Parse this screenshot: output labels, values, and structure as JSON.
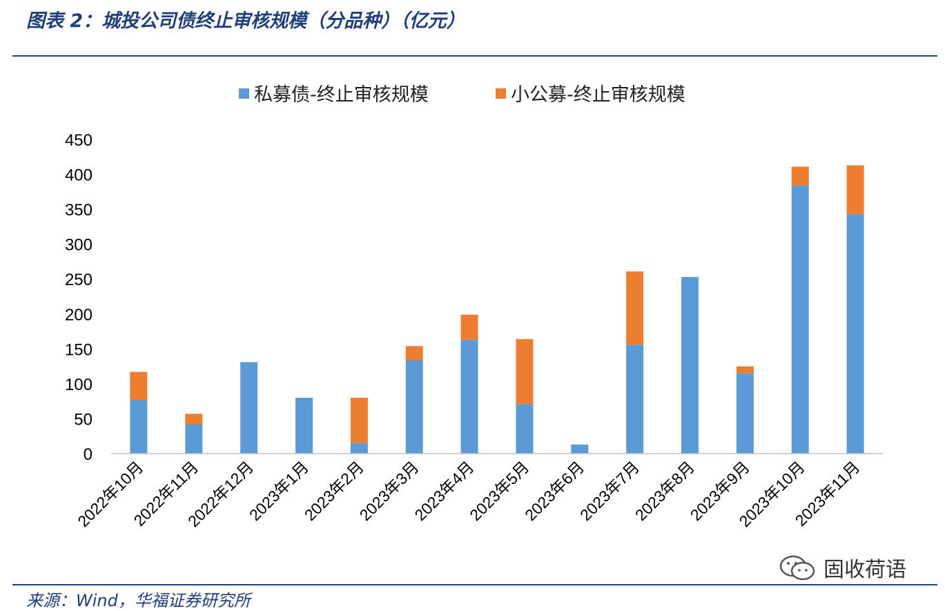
{
  "header": {
    "title": "图表 2：城投公司债终止审核规模（分品种）（亿元）"
  },
  "footer": {
    "source": "来源：Wind，华福证券研究所",
    "watermark_text": "固收荷语",
    "watermark_icon": "wechat-icon"
  },
  "colors": {
    "private": "#5B9BD5",
    "small_public": "#ED7D31",
    "brand_rule": "#1F3F7A",
    "axis": "#BFBFBF"
  },
  "chart_data": {
    "type": "bar",
    "stacked": true,
    "categories": [
      "2022年10月",
      "2022年11月",
      "2022年12月",
      "2023年1月",
      "2023年2月",
      "2023年3月",
      "2023年4月",
      "2023年5月",
      "2023年6月",
      "2023年7月",
      "2023年8月",
      "2023年9月",
      "2023年10月",
      "2023年11月"
    ],
    "series": [
      {
        "name": "私募债-终止审核规模",
        "color": "#5B9BD5",
        "values": [
          77,
          42,
          131,
          80,
          15,
          134,
          163,
          71,
          13,
          156,
          253,
          115,
          384,
          343
        ]
      },
      {
        "name": "小公募-终止审核规模",
        "color": "#ED7D31",
        "values": [
          40,
          15,
          0,
          0,
          65,
          20,
          36,
          93,
          0,
          105,
          0,
          10,
          27,
          70
        ]
      }
    ],
    "yticks": [
      0,
      50,
      100,
      150,
      200,
      250,
      300,
      350,
      400,
      450
    ],
    "ylim": [
      0,
      450
    ],
    "legend_position": "top-center",
    "grid": false
  }
}
